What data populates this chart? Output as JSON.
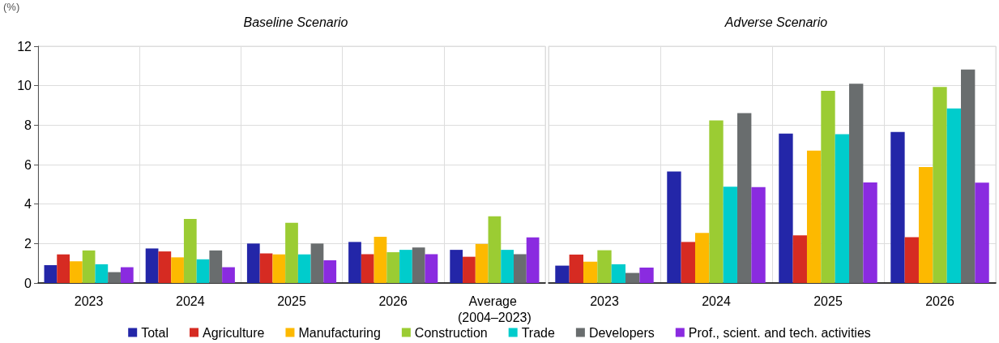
{
  "chart_data": [
    {
      "type": "bar",
      "title": "Baseline Scenario",
      "ylabel": "(%)",
      "categories": [
        "2023",
        "2024",
        "2025",
        "2026",
        "Average (2004–2023)"
      ],
      "ylim": [
        0,
        12
      ],
      "yticks": [
        0,
        2,
        4,
        6,
        8,
        10,
        12
      ],
      "grid": true,
      "legend": "bottom",
      "series": [
        {
          "name": "Total",
          "color": "#2326a8",
          "values": [
            0.9,
            1.75,
            2.0,
            2.08,
            1.68
          ]
        },
        {
          "name": "Agriculture",
          "color": "#d62b22",
          "values": [
            1.45,
            1.6,
            1.5,
            1.46,
            1.33
          ]
        },
        {
          "name": "Manufacturing",
          "color": "#fdb900",
          "values": [
            1.1,
            1.3,
            1.45,
            2.34,
            1.98
          ]
        },
        {
          "name": "Construction",
          "color": "#9bcc33",
          "values": [
            1.65,
            3.25,
            3.05,
            1.56,
            3.38
          ]
        },
        {
          "name": "Trade",
          "color": "#00cccc",
          "values": [
            0.95,
            1.2,
            1.45,
            1.68,
            1.68
          ]
        },
        {
          "name": "Developers",
          "color": "#696d6e",
          "values": [
            0.55,
            1.65,
            2.0,
            1.8,
            1.46
          ]
        },
        {
          "name": "Prof., scient. and tech. activities",
          "color": "#8a2be0",
          "values": [
            0.8,
            0.8,
            1.15,
            1.46,
            2.31
          ]
        }
      ]
    },
    {
      "type": "bar",
      "title": "Adverse Scenario",
      "categories": [
        "2023",
        "2024",
        "2025",
        "2026"
      ],
      "ylim": [
        0,
        12
      ],
      "yticks": [
        0,
        2,
        4,
        6,
        8,
        10,
        12
      ],
      "grid": true,
      "tick_labels": "x",
      "series": [
        {
          "color": "#2326a8",
          "values": [
            0.88,
            5.65,
            7.57,
            7.65
          ]
        },
        {
          "color": "#d62b22",
          "values": [
            1.44,
            2.08,
            2.41,
            2.32
          ]
        },
        {
          "color": "#fdb900",
          "values": [
            1.08,
            2.54,
            6.71,
            5.88
          ]
        },
        {
          "color": "#9bcc33",
          "values": [
            1.66,
            8.24,
            9.74,
            9.94
          ]
        },
        {
          "color": "#00cccc",
          "values": [
            0.95,
            4.88,
            7.54,
            8.85
          ]
        },
        {
          "color": "#696d6e",
          "values": [
            0.51,
            8.61,
            10.1,
            10.82
          ]
        },
        {
          "color": "#8a2be0",
          "values": [
            0.78,
            4.86,
            5.1,
            5.09
          ]
        }
      ]
    }
  ]
}
